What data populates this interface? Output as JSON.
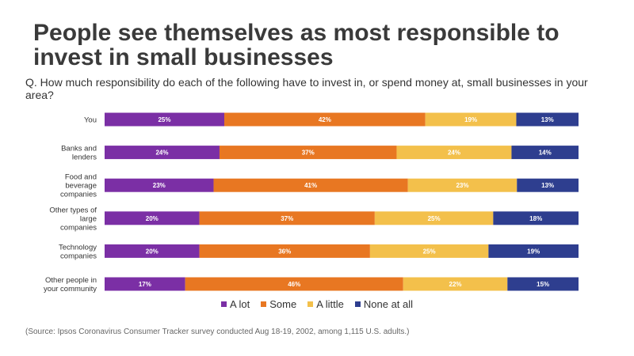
{
  "title": "People see themselves as most responsible to invest in small businesses",
  "subtitle": "Q. How much responsibility do each of the following have to invest in, or spend money at, small businesses in your area?",
  "source": "(Source: Ipsos Coronavirus Consumer Tracker survey conducted Aug  18-19, 2002, among 1,115 U.S. adults.)",
  "colors": {
    "A lot": "#7b2fa5",
    "Some": "#e87722",
    "A little": "#f3c04b",
    "None at all": "#2e3e8f"
  },
  "chart_data": {
    "type": "bar",
    "orientation": "horizontal",
    "stacked": true,
    "value_suffix": "%",
    "categories": [
      "You",
      "Banks and lenders",
      "Food and beverage companies",
      "Other types of large companies",
      "Technology companies",
      "Other people in your community"
    ],
    "category_label_lines": [
      [
        "You"
      ],
      [
        "Banks and",
        "lenders"
      ],
      [
        "Food and",
        "beverage",
        "companies"
      ],
      [
        "Other types of",
        "large",
        "companies"
      ],
      [
        "Technology",
        "companies"
      ],
      [
        "Other people in",
        "your community"
      ]
    ],
    "series": [
      {
        "name": "A lot",
        "values": [
          25,
          24,
          23,
          20,
          20,
          17
        ]
      },
      {
        "name": "Some",
        "values": [
          42,
          37,
          41,
          37,
          36,
          46
        ]
      },
      {
        "name": "A little",
        "values": [
          19,
          24,
          23,
          25,
          25,
          22
        ]
      },
      {
        "name": "None at all",
        "values": [
          13,
          14,
          13,
          18,
          19,
          15
        ]
      }
    ],
    "legend": "bottom",
    "grid": false
  }
}
